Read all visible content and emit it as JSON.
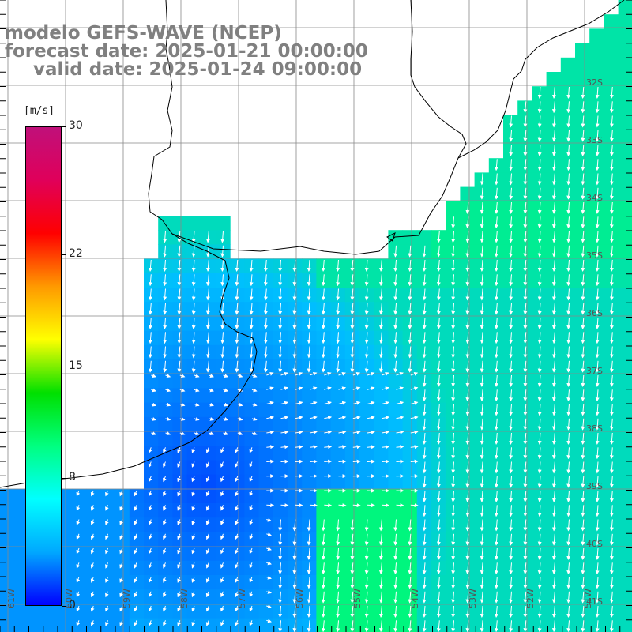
{
  "title": {
    "line1": "modelo GEFS-WAVE (NCEP)",
    "line2": "forecast date: 2025-01-21 00:00:00",
    "line3": "valid date: 2025-01-24 09:00:00"
  },
  "colorbar": {
    "unit_label": "[m/s]",
    "ticks": [
      {
        "value": 30,
        "label": "30"
      },
      {
        "value": 22,
        "label": "22"
      },
      {
        "value": 15,
        "label": "15"
      },
      {
        "value": 8,
        "label": "8"
      },
      {
        "value": 0,
        "label": "0"
      }
    ],
    "colors": [
      "#0000ff",
      "#00a8ff",
      "#00ffff",
      "#00ff80",
      "#00e000",
      "#ffff00",
      "#ff9900",
      "#ff0000",
      "#e0005a",
      "#c0107a"
    ]
  },
  "lat_labels": [
    "32S",
    "33S",
    "34S",
    "35S",
    "36S",
    "37S",
    "38S",
    "39S",
    "40S",
    "41S"
  ],
  "lon_labels": [
    "61W",
    "60W",
    "59W",
    "58W",
    "57W",
    "56W",
    "55W",
    "54W",
    "53W",
    "52W",
    "51W"
  ]
}
